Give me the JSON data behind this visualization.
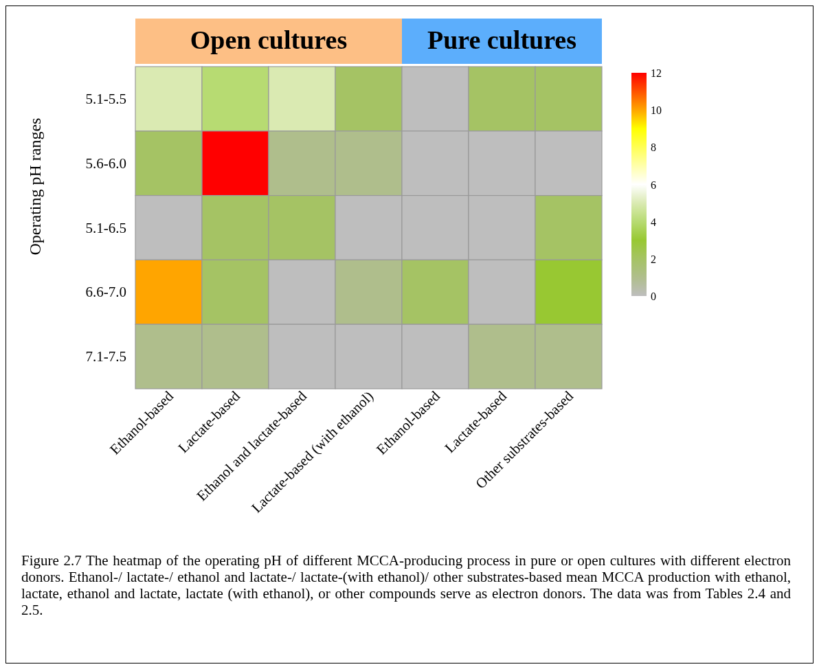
{
  "chart_data": {
    "type": "heatmap",
    "ylabel": "Operating pH ranges",
    "categories": [
      "Ethanol-based",
      "Lactate-based",
      "Ethanol and lactate-based",
      "Lactate-based (with ethanol)",
      "Ethanol-based",
      "Lactate-based",
      "Other substrates-based"
    ],
    "y_categories": [
      "5.1-5.5",
      "5.6-6.0",
      "5.1-6.5",
      "6.6-7.0",
      "7.1-7.5"
    ],
    "cells": [
      [
        5,
        4,
        5,
        2,
        0,
        2,
        2
      ],
      [
        2,
        12,
        1,
        1,
        0,
        0,
        0
      ],
      [
        0,
        2,
        2,
        0,
        0,
        0,
        2
      ],
      [
        10,
        2,
        0,
        1,
        2,
        0,
        3
      ],
      [
        1,
        1,
        0,
        0,
        0,
        1,
        1
      ]
    ],
    "clim": [
      0,
      12
    ],
    "cticks": [
      0,
      2,
      4,
      6,
      8,
      10,
      12
    ],
    "annotations": [
      "Open cultures",
      "Pure cultures",
      "Figure 2.7 The heatmap of the operating pH of different MCCA-producing process in pure or open cultures with different electron donors. Ethanol-/ lactate-/ ethanol and lactate-/ lactate-(with ethanol)/ other substrates-based mean MCCA production with ethanol, lactate, ethanol and lactate, lactate (with ethanol), or other compounds serve as electron donors. The data was from Tables 2.4 and 2.5."
    ]
  }
}
